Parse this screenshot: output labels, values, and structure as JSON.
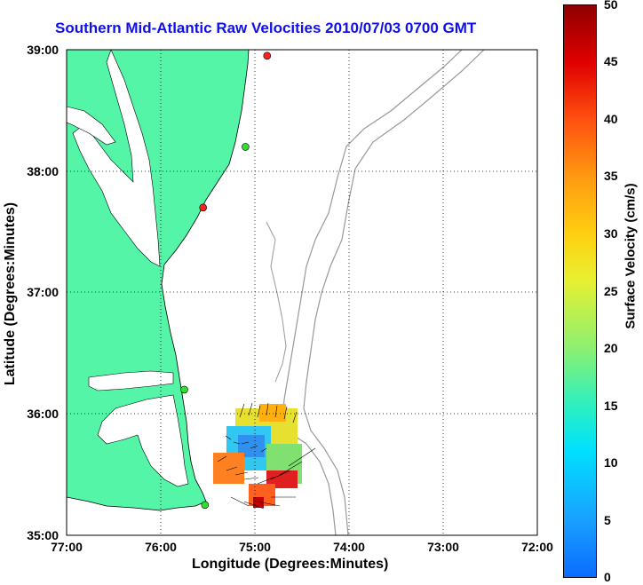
{
  "title": "Southern Mid-Atlantic Raw Velocities 2010/07/03 0700 GMT",
  "xlabel": "Longitude (Degrees:Minutes)",
  "ylabel": "Latitude (Degrees:Minutes)",
  "colorbar_label": "Surface Velocity (cm/s)",
  "colors": {
    "land": "#55f5a8",
    "coastline": "#000000",
    "bathymetry": "#999999",
    "title": "#1010ee"
  },
  "chart_data": {
    "type": "map",
    "x_ticks": [
      "77:00",
      "76:00",
      "75:00",
      "74:00",
      "73:00",
      "72:00"
    ],
    "y_ticks": [
      "39:00",
      "38:00",
      "37:00",
      "36:00",
      "35:00"
    ],
    "colorbar_ticks": [
      "50",
      "45",
      "40",
      "35",
      "30",
      "25",
      "20",
      "15",
      "10",
      "5",
      "0"
    ],
    "colorbar_range": [
      0,
      50
    ],
    "grid": true,
    "stations": [
      {
        "lon": -74.87,
        "lat": 38.95,
        "color": "#ff2020"
      },
      {
        "lon": -75.1,
        "lat": 38.2,
        "color": "#30e030"
      },
      {
        "lon": -75.55,
        "lat": 37.7,
        "color": "#ff2020"
      },
      {
        "lon": -75.75,
        "lat": 36.2,
        "color": "#30e030"
      },
      {
        "lon": -75.53,
        "lat": 35.25,
        "color": "#30e030"
      }
    ]
  }
}
